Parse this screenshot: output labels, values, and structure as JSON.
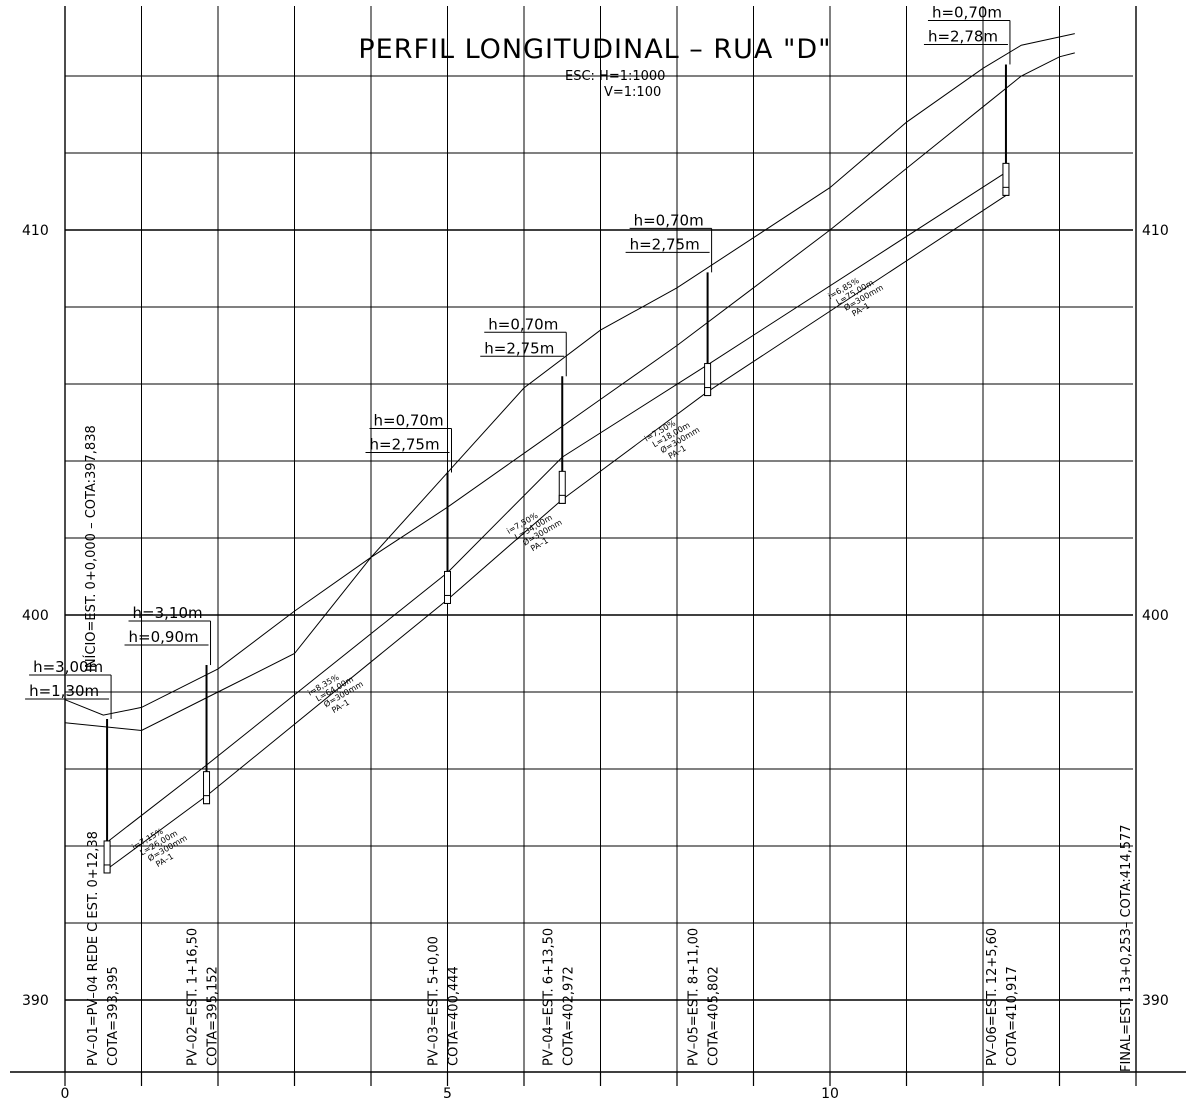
{
  "title": "PERFIL LONGITUDINAL  –  RUA \"D\"",
  "scale": {
    "h": "ESC:  H=1:1000",
    "v": "V=1:100"
  },
  "y_axis_labels": [
    {
      "value": 410,
      "label": "410"
    },
    {
      "value": 400,
      "label": "400"
    },
    {
      "value": 390,
      "label": "390"
    }
  ],
  "x_axis_labels": [
    {
      "value": 0,
      "label": "0"
    },
    {
      "value": 5,
      "label": "5"
    },
    {
      "value": 10,
      "label": "10"
    }
  ],
  "start_label": "INÍCIO=EST.  0+0,000  –  COTA:397,838",
  "end_label": "FINAL=EST.  13+0,253–  COTA:414,577",
  "terrain_primitive": [
    [
      0,
      397.8
    ],
    [
      0.5,
      397.4
    ],
    [
      1,
      397.6
    ],
    [
      2,
      398.6
    ],
    [
      3,
      400.1
    ],
    [
      4,
      401.5
    ],
    [
      5,
      402.8
    ],
    [
      6,
      404.2
    ],
    [
      7,
      405.6
    ],
    [
      8,
      407.0
    ],
    [
      9,
      408.5
    ],
    [
      10,
      410.0
    ],
    [
      11,
      411.6
    ],
    [
      12,
      413.2
    ],
    [
      12.5,
      414.0
    ],
    [
      13,
      414.5
    ],
    [
      13.2,
      414.6
    ]
  ],
  "terrain_design": [
    [
      0,
      397.2
    ],
    [
      0.5,
      397.1
    ],
    [
      1,
      397.0
    ],
    [
      2,
      398.0
    ],
    [
      3,
      399.0
    ],
    [
      4,
      401.5
    ],
    [
      5,
      403.7
    ],
    [
      6,
      405.9
    ],
    [
      7,
      407.4
    ],
    [
      8,
      408.5
    ],
    [
      9,
      409.8
    ],
    [
      10,
      411.1
    ],
    [
      11,
      412.8
    ],
    [
      12,
      414.2
    ],
    [
      12.5,
      414.8
    ],
    [
      13.2,
      415.1
    ]
  ],
  "pipe_crown": [
    [
      0.55,
      394.1
    ],
    [
      1.85,
      396.1
    ],
    [
      5,
      401.1
    ],
    [
      6.5,
      404.1
    ],
    [
      8.4,
      406.5
    ],
    [
      12.3,
      411.5
    ]
  ],
  "pipe_invert": [
    [
      0.55,
      393.4
    ],
    [
      1.85,
      395.3
    ],
    [
      5,
      400.4
    ],
    [
      6.5,
      403.0
    ],
    [
      8.4,
      405.8
    ],
    [
      12.3,
      410.9
    ]
  ],
  "manholes": [
    {
      "x": 0.55,
      "top": 397.3,
      "bottom": 393.3,
      "h1": "h=3,00m",
      "h2": "h=1,30m",
      "label": "PV–01=PV–04  REDE  C  EST.  0+12,38",
      "cota": "COTA=393,395"
    },
    {
      "x": 1.85,
      "top": 398.7,
      "bottom": 395.1,
      "h1": "h=3,10m",
      "h2": "h=0,90m",
      "label": "PV–02=EST.  1+16,50",
      "cota": "COTA=395,152"
    },
    {
      "x": 5.0,
      "top": 403.7,
      "bottom": 400.3,
      "h1": "h=0,70m",
      "h2": "h=2,75m",
      "label": "PV–03=EST.  5+0,00",
      "cota": "COTA=400,444"
    },
    {
      "x": 6.5,
      "top": 406.2,
      "bottom": 402.9,
      "h1": "h=0,70m",
      "h2": "h=2,75m",
      "label": "PV–04=EST.  6+13,50",
      "cota": "COTA=402,972"
    },
    {
      "x": 8.4,
      "top": 408.9,
      "bottom": 405.7,
      "h1": "h=0,70m",
      "h2": "h=2,75m",
      "label": "PV–05=EST.  8+11,00",
      "cota": "COTA=405,802"
    },
    {
      "x": 12.3,
      "top": 414.3,
      "bottom": 410.9,
      "h1": "h=0,70m",
      "h2": "h=2,78m",
      "label": "PV–06=EST.  12+5,60",
      "cota": "COTA=410,917"
    }
  ],
  "segments": [
    {
      "x": 0.9,
      "y": 393.9,
      "lines": [
        "i=7,15%",
        "L=26,00m",
        "Ø=300mm",
        "PA–1"
      ]
    },
    {
      "x": 3.2,
      "y": 397.9,
      "lines": [
        "i=8,35%",
        "L=64,00m",
        "Ø=300mm",
        "PA–1"
      ]
    },
    {
      "x": 5.8,
      "y": 402.1,
      "lines": [
        "i=7,50%",
        "L=34,00m",
        "Ø=300mm",
        "PA–1"
      ]
    },
    {
      "x": 7.6,
      "y": 404.5,
      "lines": [
        "i=7,50%",
        "L=18,00m",
        "Ø=300mm",
        "PA–1"
      ]
    },
    {
      "x": 10.0,
      "y": 408.2,
      "lines": [
        "i=6,85%",
        "L=75,00m",
        "Ø=300mm",
        "PA–1"
      ]
    }
  ]
}
